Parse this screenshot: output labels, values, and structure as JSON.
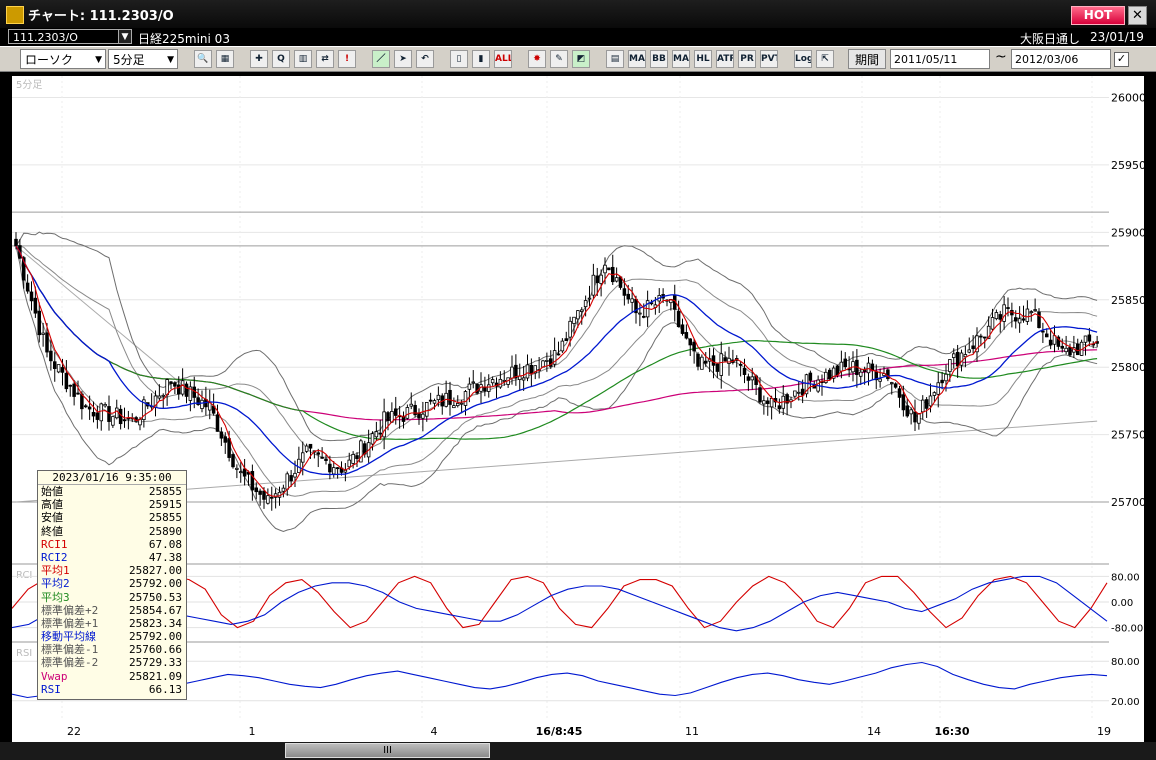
{
  "window": {
    "title": "チャート: 111.2303/O",
    "hot_label": "HOT",
    "close_label": "✕"
  },
  "info_bar": {
    "symbol": "111.2303/O",
    "instrument": "日経225mini 03",
    "exchange": "大阪日通し",
    "date": "23/01/19"
  },
  "toolbar": {
    "chart_type": "ローソク",
    "interval": "5分足",
    "period_label": "期間",
    "from_date": "2011/05/11",
    "tilde": "~",
    "to_date": "2012/03/06",
    "buttons": [
      {
        "name": "zoom-icon",
        "glyph": "🔍"
      },
      {
        "name": "layout-icon",
        "glyph": "▦"
      },
      {
        "name": "crosshair-icon",
        "glyph": "✚"
      },
      {
        "name": "search-chart-icon",
        "glyph": "Q"
      },
      {
        "name": "bar-chart-icon",
        "glyph": "▥"
      },
      {
        "name": "arrows-icon",
        "glyph": "⇄"
      },
      {
        "name": "warning-icon",
        "glyph": "!"
      },
      {
        "name": "draw-line-icon",
        "glyph": "／"
      },
      {
        "name": "cursor-icon",
        "glyph": "➤"
      },
      {
        "name": "undo-icon",
        "glyph": "↶"
      },
      {
        "name": "candle-narrow-icon",
        "glyph": "▯"
      },
      {
        "name": "candle-wide-icon",
        "glyph": "▮"
      },
      {
        "name": "all-icon",
        "glyph": "ALL"
      },
      {
        "name": "settings-icon",
        "glyph": "✸"
      },
      {
        "name": "pen-icon",
        "glyph": "✎"
      },
      {
        "name": "color-icon",
        "glyph": "◩"
      },
      {
        "name": "indicator-icon",
        "glyph": "▤"
      },
      {
        "name": "ma-icon",
        "glyph": "MA"
      },
      {
        "name": "bb-icon",
        "glyph": "BB"
      },
      {
        "name": "mae-icon",
        "glyph": "MAE"
      },
      {
        "name": "hl-icon",
        "glyph": "HL"
      },
      {
        "name": "atr-icon",
        "glyph": "ATR"
      },
      {
        "name": "pr-icon",
        "glyph": "PR"
      },
      {
        "name": "pvt-icon",
        "glyph": "PVT"
      },
      {
        "name": "log-icon",
        "glyph": "Log"
      },
      {
        "name": "export-icon",
        "glyph": "⇱"
      }
    ]
  },
  "colors": {
    "red": "#d40000",
    "blue": "#0018d0",
    "green": "#1f8a1f",
    "magenta": "#cc0077",
    "grey": "#808080",
    "candle": "#000000"
  },
  "ohlc_box": {
    "timestamp": "2023/01/16 9:35:00",
    "rows": [
      {
        "label": "始値",
        "value": "25855",
        "color": "#000000"
      },
      {
        "label": "高値",
        "value": "25915",
        "color": "#000000"
      },
      {
        "label": "安値",
        "value": "25855",
        "color": "#000000"
      },
      {
        "label": "終値",
        "value": "25890",
        "color": "#000000"
      },
      {
        "label": "RCI1",
        "value": "67.08",
        "color": "#d40000"
      },
      {
        "label": "RCI2",
        "value": "47.38",
        "color": "#0018d0"
      },
      {
        "label": "平均1",
        "value": "25827.00",
        "color": "#d40000"
      },
      {
        "label": "平均2",
        "value": "25792.00",
        "color": "#0018d0"
      },
      {
        "label": "平均3",
        "value": "25750.53",
        "color": "#1f8a1f"
      },
      {
        "label": "標準偏差+2",
        "value": "25854.67",
        "color": "#555555"
      },
      {
        "label": "標準偏差+1",
        "value": "25823.34",
        "color": "#555555"
      },
      {
        "label": "移動平均線",
        "value": "25792.00",
        "color": "#0018d0"
      },
      {
        "label": "標準偏差-1",
        "value": "25760.66",
        "color": "#555555"
      },
      {
        "label": "標準偏差-2",
        "value": "25729.33",
        "color": "#555555"
      },
      {
        "label": "Vwap",
        "value": "25821.09",
        "color": "#cc0077"
      },
      {
        "label": "RSI",
        "value": "66.13",
        "color": "#0018d0"
      }
    ]
  },
  "chart_data": [
    {
      "type": "candlestick",
      "panel_label": "5分足",
      "ylim": [
        25660,
        26010
      ],
      "y_ticks": [
        "26000",
        "25950",
        "25900",
        "25850",
        "25800",
        "25750",
        "25700"
      ],
      "x_ticks": [
        "22",
        "1",
        "4",
        "16/8:45",
        "11",
        "14",
        "16:30",
        "19"
      ],
      "x_ticks_bold": [
        "16/8:45",
        "16:30"
      ],
      "candles_count": 180,
      "close_waypoints": [
        [
          0,
          25890
        ],
        [
          8,
          25810
        ],
        [
          18,
          25770
        ],
        [
          30,
          25760
        ],
        [
          40,
          25790
        ],
        [
          50,
          25770
        ],
        [
          58,
          25720
        ],
        [
          65,
          25700
        ],
        [
          75,
          25735
        ],
        [
          85,
          25725
        ],
        [
          95,
          25760
        ],
        [
          105,
          25770
        ],
        [
          115,
          25780
        ],
        [
          122,
          25790
        ],
        [
          132,
          25800
        ],
        [
          140,
          25810
        ],
        [
          145,
          25840
        ],
        [
          152,
          25880
        ],
        [
          160,
          25840
        ],
        [
          168,
          25850
        ],
        [
          176,
          25800
        ],
        [
          185,
          25805
        ],
        [
          195,
          25770
        ],
        [
          205,
          25790
        ],
        [
          215,
          25800
        ],
        [
          225,
          25795
        ],
        [
          232,
          25760
        ],
        [
          240,
          25800
        ],
        [
          248,
          25820
        ],
        [
          255,
          25840
        ],
        [
          262,
          25840
        ],
        [
          270,
          25810
        ],
        [
          279,
          25820
        ]
      ],
      "horizontal_lines": [
        25915,
        25890,
        25700
      ],
      "trendlines": [
        [
          [
            0,
            25700
          ],
          [
            279,
            25760
          ]
        ],
        [
          [
            0,
            25890
          ],
          [
            50,
            25770
          ]
        ]
      ],
      "indicators": [
        "平均1",
        "平均2",
        "平均3",
        "標準偏差±1",
        "標準偏差±2",
        "Vwap"
      ]
    },
    {
      "type": "line",
      "panel_label": "RCI",
      "y_ticks": [
        "80.00",
        "0.00",
        "-80.00"
      ],
      "ylim": [
        -100,
        100
      ],
      "series": [
        {
          "name": "RCI1",
          "color": "#d40000",
          "values": [
            -20,
            40,
            70,
            80,
            50,
            -20,
            -80,
            -70,
            -20,
            50,
            80,
            70,
            40,
            -40,
            -80,
            -60,
            20,
            60,
            70,
            30,
            -30,
            -80,
            -60,
            0,
            60,
            80,
            60,
            -20,
            -80,
            -70,
            0,
            70,
            80,
            60,
            -20,
            -70,
            -80,
            -20,
            50,
            70,
            70,
            50,
            -20,
            -80,
            -60,
            0,
            50,
            80,
            60,
            10,
            -60,
            -80,
            -20,
            60,
            80,
            80,
            30,
            -30,
            -80,
            -50,
            20,
            70,
            80,
            60,
            0,
            -60,
            -80,
            -20,
            60
          ]
        },
        {
          "name": "RCI2",
          "color": "#0018d0",
          "values": [
            -80,
            -70,
            -40,
            0,
            40,
            60,
            60,
            40,
            10,
            -20,
            -40,
            -50,
            -60,
            -70,
            -60,
            -40,
            0,
            30,
            50,
            60,
            60,
            50,
            30,
            0,
            -20,
            -30,
            -40,
            -50,
            -60,
            -60,
            -40,
            -10,
            20,
            40,
            50,
            50,
            40,
            20,
            0,
            -20,
            -40,
            -60,
            -80,
            -90,
            -80,
            -60,
            -30,
            0,
            20,
            30,
            20,
            10,
            0,
            -20,
            -30,
            -10,
            10,
            40,
            60,
            70,
            80,
            80,
            60,
            20,
            -20,
            -60
          ]
        }
      ]
    },
    {
      "type": "line",
      "panel_label": "RSI",
      "y_ticks": [
        "80.00",
        "20.00"
      ],
      "ylim": [
        0,
        100
      ],
      "series": [
        {
          "name": "RSI",
          "color": "#0018d0",
          "values": [
            30,
            25,
            28,
            32,
            38,
            45,
            50,
            55,
            58,
            52,
            48,
            45,
            50,
            55,
            60,
            58,
            55,
            50,
            45,
            42,
            40,
            45,
            52,
            58,
            62,
            65,
            60,
            55,
            50,
            45,
            40,
            38,
            42,
            48,
            55,
            60,
            62,
            58,
            50,
            45,
            40,
            35,
            30,
            28,
            32,
            40,
            48,
            55,
            60,
            62,
            58,
            52,
            48,
            45,
            50,
            56,
            62,
            70,
            75,
            78,
            72,
            60,
            52,
            45,
            40,
            38,
            45,
            50,
            55,
            58,
            60,
            58
          ]
        }
      ]
    }
  ]
}
